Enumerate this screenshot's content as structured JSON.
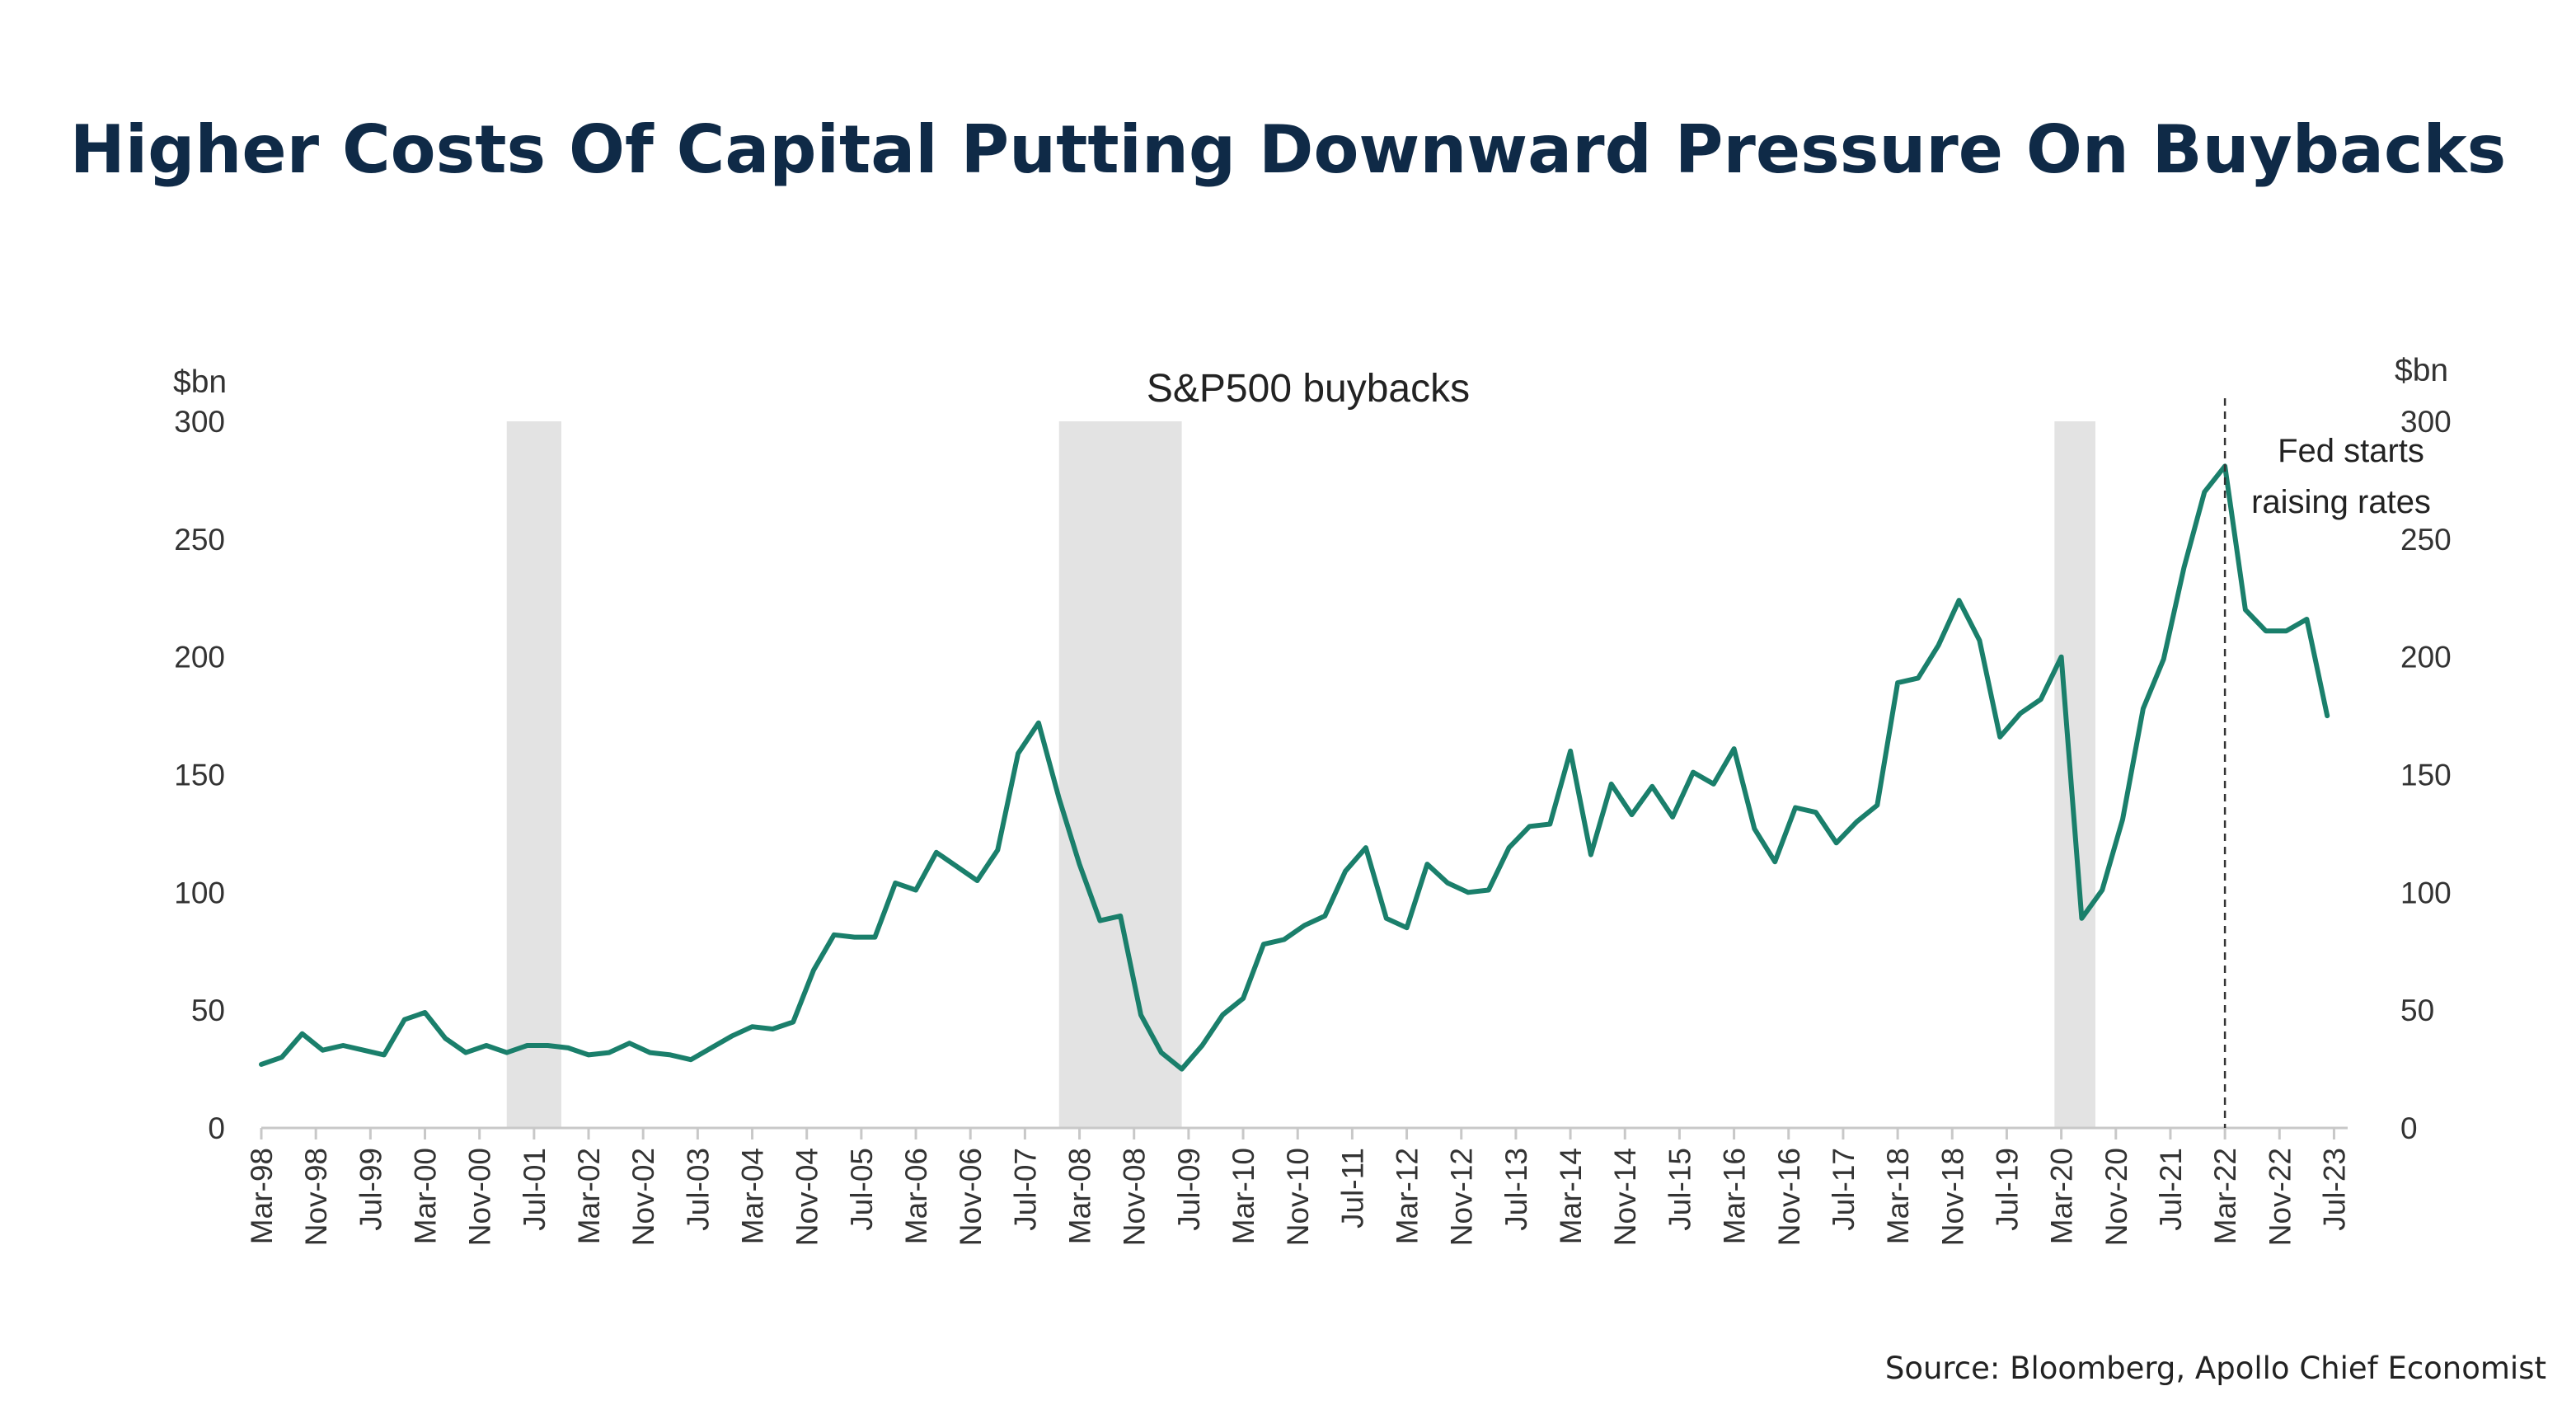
{
  "title": "Higher Costs Of Capital Putting Downward Pressure On Buybacks",
  "source": "Source: Bloomberg, Apollo Chief Economist",
  "colors": {
    "line": "#1a7f6b",
    "recession": "#e3e3e3",
    "title": "#0f2a47"
  },
  "chart_data": {
    "type": "line",
    "title": "S&P500 buybacks",
    "ylabel_left": "$bn",
    "ylabel_right": "$bn",
    "ylim": [
      0,
      300
    ],
    "yticks": [
      0,
      50,
      100,
      150,
      200,
      250,
      300
    ],
    "grid": false,
    "x_tick_labels": [
      "Mar-98",
      "Nov-98",
      "Jul-99",
      "Mar-00",
      "Nov-00",
      "Jul-01",
      "Mar-02",
      "Nov-02",
      "Jul-03",
      "Mar-04",
      "Nov-04",
      "Jul-05",
      "Mar-06",
      "Nov-06",
      "Jul-07",
      "Mar-08",
      "Nov-08",
      "Jul-09",
      "Mar-10",
      "Nov-10",
      "Jul-11",
      "Mar-12",
      "Nov-12",
      "Jul-13",
      "Mar-14",
      "Nov-14",
      "Jul-15",
      "Mar-16",
      "Nov-16",
      "Jul-17",
      "Mar-18",
      "Nov-18",
      "Jul-19",
      "Mar-20",
      "Nov-20",
      "Jul-21",
      "Mar-22",
      "Nov-22",
      "Jul-23"
    ],
    "x_start": "1998Q1",
    "frequency": "quarterly",
    "series": [
      {
        "values": [
          27,
          30,
          40,
          33,
          35,
          33,
          31,
          46,
          49,
          38,
          32,
          35,
          32,
          35,
          35,
          34,
          31,
          32,
          36,
          32,
          31,
          29,
          34,
          39,
          43,
          42,
          45,
          67,
          82,
          81,
          81,
          104,
          101,
          117,
          111,
          105,
          118,
          159,
          172,
          140,
          112,
          88,
          90,
          48,
          32,
          25,
          35,
          48,
          55,
          78,
          80,
          86,
          90,
          109,
          119,
          89,
          85,
          112,
          104,
          100,
          101,
          119,
          128,
          129,
          160,
          116,
          146,
          133,
          145,
          132,
          151,
          146,
          161,
          127,
          113,
          136,
          134,
          121,
          130,
          137,
          189,
          191,
          205,
          224,
          207,
          166,
          176,
          182,
          200,
          89,
          101,
          131,
          178,
          199,
          238,
          270,
          281,
          220,
          211,
          211,
          216,
          175
        ]
      }
    ],
    "recessions": [
      {
        "start": "2001-03",
        "end": "2001-11"
      },
      {
        "start": "2007-12",
        "end": "2009-06"
      },
      {
        "start": "2020-02",
        "end": "2020-08"
      }
    ],
    "annotations": [
      {
        "at": "Mar-22",
        "style": "dashed-vertical",
        "lines": [
          "Fed starts",
          "raising rates"
        ]
      }
    ]
  }
}
